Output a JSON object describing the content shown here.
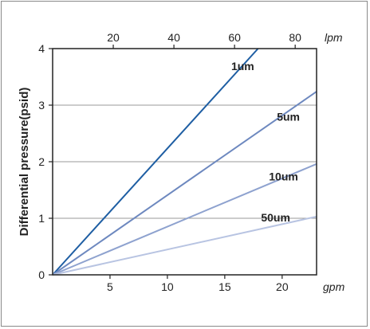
{
  "chart_data": {
    "type": "line",
    "title": "",
    "ylabel": "Differential pressure(psid)",
    "xlabel": "gpm",
    "x2label": "lpm",
    "xlim": [
      0,
      23
    ],
    "ylim": [
      0,
      4
    ],
    "x_ticks": [
      5,
      10,
      15,
      20
    ],
    "x2_ticks": [
      20,
      40,
      60,
      80
    ],
    "x2_per_x": 3.785,
    "y_ticks": [
      0,
      1,
      2,
      3,
      4
    ],
    "grid": "horizontal",
    "series": [
      {
        "name": "1um",
        "color": "#1e5ea3",
        "points": [
          [
            0,
            0
          ],
          [
            17.9,
            4.0
          ]
        ]
      },
      {
        "name": "5um",
        "color": "#6d88bf",
        "points": [
          [
            0,
            0
          ],
          [
            23,
            3.24
          ]
        ]
      },
      {
        "name": "10um",
        "color": "#8ea2cf",
        "points": [
          [
            0,
            0
          ],
          [
            23,
            1.96
          ]
        ]
      },
      {
        "name": "50um",
        "color": "#b8c4e2",
        "points": [
          [
            0,
            0
          ],
          [
            23,
            1.03
          ]
        ]
      }
    ]
  }
}
